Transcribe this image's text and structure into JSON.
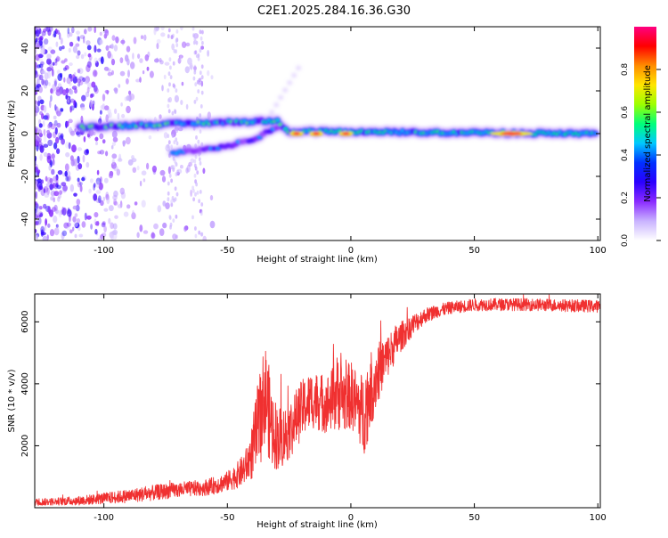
{
  "page_title": "C2E1.2025.284.16.36.G30",
  "chart_data": [
    {
      "id": "spectrogram",
      "type": "heatmap",
      "title": "C2E1.2025.284.16.36.G30",
      "xlabel": "Height of straight line (km)",
      "ylabel": "Frequency (Hz)",
      "xlim": [
        -128,
        101
      ],
      "ylim": [
        -50,
        50
      ],
      "x_ticks": [
        -100,
        -50,
        0,
        50,
        100
      ],
      "x_tick_labels": [
        "-100",
        "-50",
        "0",
        "50",
        "100"
      ],
      "y_ticks": [
        -40,
        -20,
        0,
        20,
        40
      ],
      "y_tick_labels": [
        "-40",
        "-20",
        "0",
        "20",
        "40"
      ],
      "colorbar": {
        "label": "Normalized spectral amplitude",
        "range": [
          0,
          1
        ],
        "ticks": [
          0.0,
          0.2,
          0.4,
          0.6,
          0.8
        ],
        "tick_labels": [
          "0.0",
          "0.2",
          "0.4",
          "0.6",
          "0.8"
        ],
        "colors": [
          "#ffffff",
          "#c9b3ff",
          "#8a2bff",
          "#2a00ff",
          "#0030ff",
          "#00c8ff",
          "#00ff7a",
          "#9cff00",
          "#ffe600",
          "#ff8c00",
          "#ff0000",
          "#ff0080"
        ]
      },
      "features": [
        {
          "name": "main-band",
          "x": [
            -110,
            -60,
            -30,
            -25,
            100
          ],
          "y": [
            3,
            5,
            6,
            1,
            0
          ],
          "amplitude": 0.55
        },
        {
          "name": "lower-branch",
          "x": [
            -72,
            -50,
            -38,
            -30
          ],
          "y": [
            -9,
            -6,
            -2,
            3
          ],
          "amplitude": 0.4
        },
        {
          "name": "upper-branch",
          "x": [
            -32,
            -20
          ],
          "y": [
            10,
            33
          ],
          "amplitude": 0.1
        },
        {
          "name": "peaks",
          "x": [
            -22,
            -14,
            -2,
            65
          ],
          "y": [
            0,
            0,
            0,
            0
          ],
          "amplitude": 0.95
        }
      ]
    },
    {
      "id": "snr",
      "type": "line",
      "xlabel": "Height of straight line (km)",
      "ylabel": "SNR (10 * v/v)",
      "xlim": [
        -128,
        101
      ],
      "ylim": [
        0,
        6900
      ],
      "x_ticks": [
        -100,
        -50,
        0,
        50,
        100
      ],
      "x_tick_labels": [
        "-100",
        "-50",
        "0",
        "50",
        "100"
      ],
      "y_ticks": [
        2000,
        4000,
        6000
      ],
      "y_tick_labels": [
        "2000",
        "4000",
        "6000"
      ],
      "color": "#f03030",
      "series": [
        {
          "name": "SNR",
          "x": [
            -128,
            -120,
            -110,
            -100,
            -90,
            -80,
            -70,
            -60,
            -55,
            -50,
            -45,
            -42,
            -40,
            -38,
            -36,
            -35,
            -34,
            -33,
            -32,
            -30,
            -28,
            -26,
            -24,
            -22,
            -20,
            -18,
            -15,
            -12,
            -10,
            -8,
            -6,
            -5,
            -4,
            -2,
            0,
            2,
            4,
            5,
            6,
            8,
            10,
            12,
            15,
            18,
            20,
            25,
            30,
            35,
            40,
            45,
            50,
            60,
            70,
            80,
            90,
            101
          ],
          "y": [
            180,
            200,
            230,
            300,
            380,
            480,
            580,
            640,
            720,
            850,
            1100,
            1400,
            1800,
            2500,
            3100,
            3700,
            3500,
            3000,
            2600,
            2300,
            2250,
            2400,
            2600,
            2900,
            3150,
            3350,
            3500,
            3400,
            3350,
            3450,
            3650,
            3800,
            3600,
            3500,
            3650,
            3400,
            3150,
            3000,
            3300,
            3800,
            4200,
            4500,
            4900,
            5300,
            5500,
            5900,
            6200,
            6350,
            6450,
            6500,
            6550,
            6560,
            6560,
            6540,
            6520,
            6500
          ],
          "noise": [
            120,
            120,
            150,
            180,
            220,
            250,
            250,
            260,
            280,
            320,
            450,
            600,
            900,
            1400,
            1600,
            1700,
            1700,
            1500,
            1300,
            1100,
            1000,
            950,
            950,
            950,
            950,
            950,
            950,
            950,
            950,
            1000,
            1200,
            1300,
            1200,
            1100,
            1100,
            1100,
            1200,
            1400,
            1400,
            1300,
            1100,
            900,
            700,
            600,
            500,
            350,
            250,
            220,
            200,
            200,
            200,
            200,
            200,
            200,
            200,
            200
          ]
        }
      ]
    }
  ]
}
